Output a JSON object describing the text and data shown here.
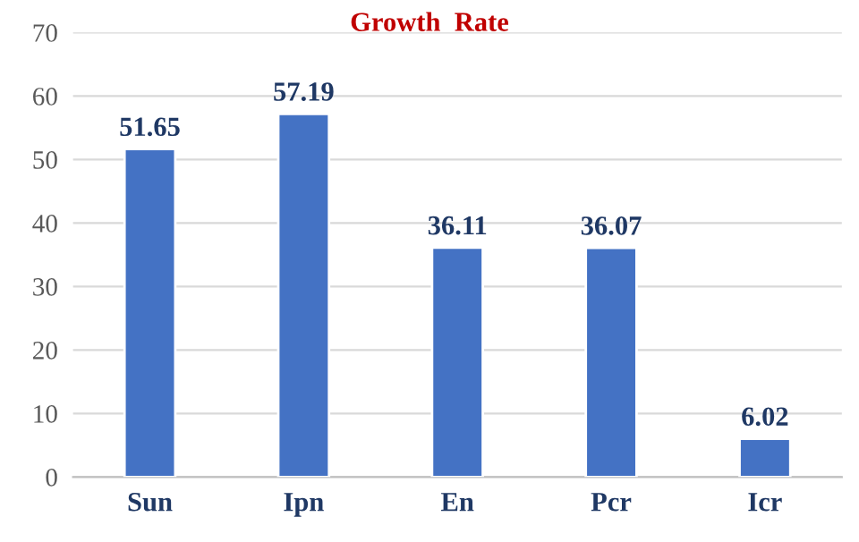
{
  "chart_data": {
    "type": "bar",
    "title": "Growth  Rate",
    "categories": [
      "Sun",
      "Ipn",
      "En",
      "Pcr",
      "Icr"
    ],
    "values": [
      51.65,
      57.19,
      36.11,
      36.07,
      6.02
    ],
    "color": "#4472c4",
    "ylim": [
      0,
      70
    ],
    "yticks": [
      0,
      10,
      20,
      30,
      40,
      50,
      60,
      70
    ],
    "grid": "y",
    "data_labels": true
  }
}
